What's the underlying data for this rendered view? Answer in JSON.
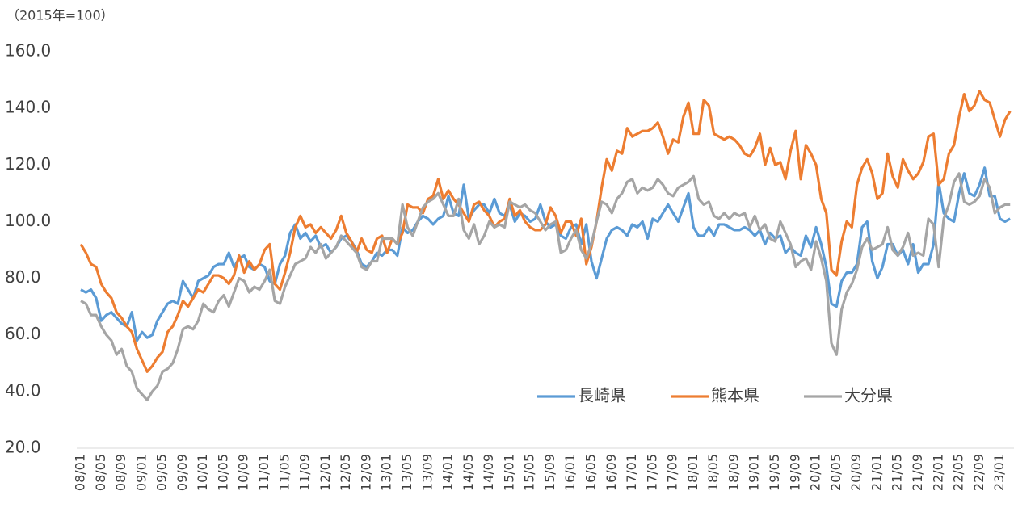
{
  "chart_data": {
    "type": "line",
    "y_label": "（2015年=100）",
    "categories": [
      "08/01",
      null,
      null,
      null,
      "08/05",
      null,
      null,
      null,
      "08/09",
      null,
      null,
      null,
      "09/01",
      null,
      null,
      null,
      "09/05",
      null,
      null,
      null,
      "09/09",
      null,
      null,
      null,
      "10/01",
      null,
      null,
      null,
      "10/05",
      null,
      null,
      null,
      "10/09",
      null,
      null,
      null,
      "11/01",
      null,
      null,
      null,
      "11/05",
      null,
      null,
      null,
      "11/09",
      null,
      null,
      null,
      "12/01",
      null,
      null,
      null,
      "12/05",
      null,
      null,
      null,
      "12/09",
      null,
      null,
      null,
      "13/01",
      null,
      null,
      null,
      "13/05",
      null,
      null,
      null,
      "13/09",
      null,
      null,
      null,
      "14/01",
      null,
      null,
      null,
      "14/05",
      null,
      null,
      null,
      "14/09",
      null,
      null,
      null,
      "15/01",
      null,
      null,
      null,
      "15/05",
      null,
      null,
      null,
      "15/09",
      null,
      null,
      null,
      "16/01",
      null,
      null,
      null,
      "16/05",
      null,
      null,
      null,
      "16/09",
      null,
      null,
      null,
      "17/01",
      null,
      null,
      null,
      "17/05",
      null,
      null,
      null,
      "17/09",
      null,
      null,
      null,
      "18/01",
      null,
      null,
      null,
      "18/05",
      null,
      null,
      null,
      "18/09",
      null,
      null,
      null,
      "19/01",
      null,
      null,
      null,
      "19/05",
      null,
      null,
      null,
      "19/09",
      null,
      null,
      null,
      "20/01",
      null,
      null,
      null,
      "20/05",
      null,
      null,
      null,
      "20/09",
      null,
      null,
      null,
      "21/01",
      null,
      null,
      null,
      "21/05",
      null,
      null,
      null,
      "21/09",
      null,
      null,
      null,
      "22/01",
      null,
      null,
      null,
      "22/05",
      null,
      null,
      null,
      "22/09",
      null,
      null,
      null,
      "23/01",
      null,
      null
    ],
    "series": [
      {
        "name": "長崎県",
        "color": "#5b9bd5",
        "values": [
          76,
          75,
          76,
          73,
          65,
          67,
          68,
          66,
          64,
          63,
          68,
          58,
          61,
          59,
          60,
          65,
          68,
          71,
          72,
          71,
          79,
          76,
          73,
          79,
          80,
          81,
          84,
          85,
          85,
          89,
          84,
          87,
          88,
          84,
          83,
          85,
          84,
          79,
          78,
          85,
          88,
          96,
          99,
          94,
          96,
          93,
          95,
          91,
          92,
          89,
          91,
          94,
          95,
          93,
          90,
          85,
          84,
          86,
          89,
          88,
          90,
          90,
          88,
          98,
          96,
          97,
          100,
          102,
          101,
          99,
          101,
          102,
          109,
          103,
          102,
          113,
          101,
          104,
          106,
          106,
          103,
          108,
          103,
          102,
          106,
          100,
          103,
          102,
          100,
          101,
          106,
          100,
          98,
          99,
          95,
          94,
          98,
          99,
          92,
          99,
          86,
          80,
          87,
          94,
          97,
          98,
          97,
          95,
          99,
          98,
          100,
          94,
          101,
          100,
          103,
          106,
          103,
          100,
          105,
          110,
          98,
          95,
          95,
          98,
          95,
          99,
          99,
          98,
          97,
          97,
          98,
          97,
          95,
          97,
          92,
          96,
          94,
          95,
          89,
          91,
          89,
          88,
          95,
          91,
          98,
          92,
          84,
          71,
          70,
          79,
          82,
          82,
          85,
          98,
          100,
          86,
          80,
          84,
          92,
          92,
          88,
          90,
          85,
          92,
          82,
          85,
          85,
          92,
          114,
          103,
          101,
          100,
          110,
          117,
          110,
          109,
          113,
          119,
          109,
          109,
          101,
          100,
          101
        ]
      },
      {
        "name": "熊本県",
        "color": "#ed7d31",
        "values": [
          92,
          89,
          85,
          84,
          78,
          75,
          73,
          68,
          66,
          63,
          61,
          55,
          51,
          47,
          49,
          52,
          54,
          61,
          63,
          67,
          72,
          70,
          73,
          76,
          75,
          78,
          81,
          81,
          80,
          78,
          81,
          88,
          82,
          86,
          83,
          85,
          90,
          92,
          78,
          76,
          82,
          89,
          98,
          102,
          98,
          99,
          96,
          98,
          96,
          94,
          97,
          102,
          96,
          93,
          89,
          94,
          90,
          89,
          94,
          95,
          89,
          94,
          92,
          96,
          106,
          105,
          105,
          103,
          108,
          109,
          115,
          108,
          111,
          108,
          106,
          103,
          100,
          106,
          107,
          104,
          102,
          98,
          100,
          101,
          108,
          102,
          104,
          100,
          98,
          97,
          97,
          99,
          105,
          102,
          96,
          100,
          100,
          95,
          101,
          85,
          91,
          100,
          112,
          122,
          118,
          125,
          124,
          133,
          130,
          131,
          132,
          132,
          133,
          135,
          130,
          124,
          129,
          128,
          137,
          142,
          131,
          131,
          143,
          141,
          131,
          130,
          129,
          130,
          129,
          127,
          124,
          123,
          126,
          131,
          120,
          126,
          120,
          121,
          115,
          125,
          132,
          115,
          127,
          124,
          120,
          108,
          103,
          83,
          81,
          93,
          100,
          98,
          113,
          119,
          122,
          117,
          108,
          110,
          124,
          116,
          112,
          122,
          118,
          115,
          117,
          121,
          130,
          131,
          113,
          115,
          124,
          127,
          137,
          145,
          139,
          141,
          146,
          143,
          142,
          136,
          130,
          136,
          139
        ]
      },
      {
        "name": "大分県",
        "color": "#a5a5a5",
        "values": [
          72,
          71,
          67,
          67,
          63,
          60,
          58,
          53,
          55,
          49,
          47,
          41,
          39,
          37,
          40,
          42,
          47,
          48,
          50,
          55,
          62,
          63,
          62,
          65,
          71,
          69,
          68,
          72,
          74,
          70,
          75,
          80,
          79,
          75,
          77,
          76,
          79,
          83,
          72,
          71,
          77,
          81,
          85,
          86,
          87,
          91,
          89,
          92,
          87,
          89,
          91,
          95,
          93,
          91,
          89,
          84,
          83,
          86,
          86,
          94,
          94,
          94,
          92,
          106,
          98,
          95,
          100,
          105,
          107,
          108,
          110,
          106,
          102,
          102,
          108,
          97,
          94,
          99,
          92,
          95,
          100,
          98,
          99,
          98,
          107,
          106,
          105,
          106,
          104,
          103,
          100,
          97,
          99,
          100,
          89,
          90,
          94,
          97,
          90,
          87,
          92,
          100,
          107,
          106,
          103,
          108,
          110,
          114,
          115,
          110,
          112,
          111,
          112,
          115,
          113,
          110,
          109,
          112,
          113,
          114,
          116,
          108,
          106,
          107,
          102,
          101,
          103,
          101,
          103,
          102,
          103,
          98,
          102,
          97,
          99,
          94,
          93,
          100,
          96,
          92,
          84,
          86,
          87,
          83,
          93,
          87,
          79,
          57,
          53,
          69,
          75,
          78,
          83,
          91,
          94,
          90,
          91,
          92,
          98,
          90,
          88,
          91,
          96,
          88,
          89,
          88,
          101,
          99,
          84,
          101,
          106,
          114,
          117,
          107,
          106,
          107,
          109,
          115,
          112,
          103,
          105,
          106,
          106
        ]
      }
    ],
    "ylim": [
      20,
      160
    ],
    "yticks": [
      {
        "value": 20,
        "label": "20.0"
      },
      {
        "value": 40,
        "label": "40.0"
      },
      {
        "value": 60,
        "label": "60.0"
      },
      {
        "value": 80,
        "label": "80.0"
      },
      {
        "value": 100,
        "label": "100.0"
      },
      {
        "value": 120,
        "label": "120.0"
      },
      {
        "value": 140,
        "label": "140.0"
      },
      {
        "value": 160,
        "label": "160.0"
      }
    ],
    "grid": false,
    "legend": "lower-right"
  }
}
